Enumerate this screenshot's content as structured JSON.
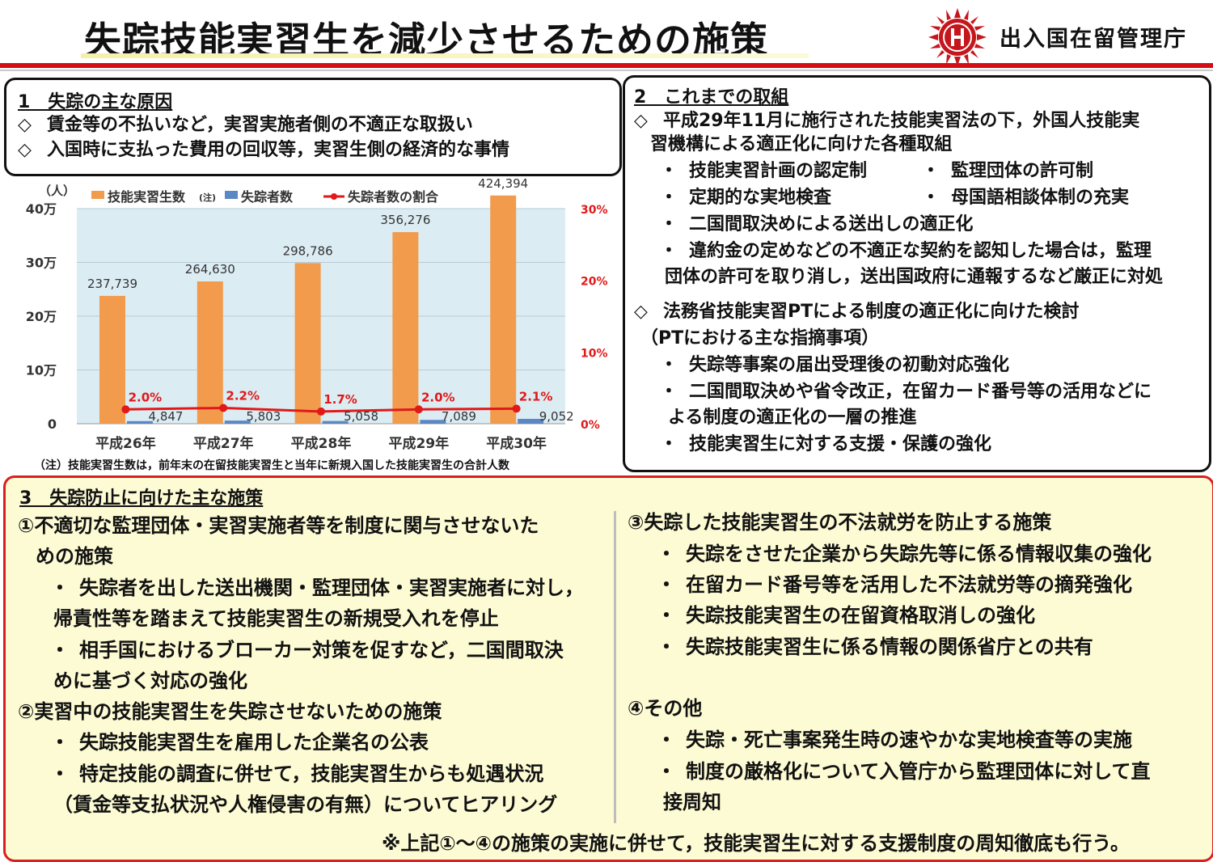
{
  "header": {
    "title": "失踪技能実習生を減少させるための施策",
    "agency": "出入国在留管理庁"
  },
  "section1": {
    "heading": "1　失踪の主な原因",
    "items": [
      "賃金等の不払いなど，実習実施者側の不適正な取扱い",
      "入国時に支払った費用の回収等，実習生側の経済的な事情"
    ],
    "bullet": "◇"
  },
  "chart_data": {
    "type": "bar",
    "categories": [
      "平成26年",
      "平成27年",
      "平成28年",
      "平成29年",
      "平成30年"
    ],
    "series": [
      {
        "name": "技能実習生数(注)",
        "type": "bar",
        "values": [
          237739,
          264630,
          298786,
          356276,
          424394
        ],
        "color": "#f29b4c"
      },
      {
        "name": "失踪者数",
        "type": "bar",
        "values": [
          4847,
          5803,
          5058,
          7089,
          9052
        ],
        "color": "#5b87c4"
      },
      {
        "name": "失踪者数の割合",
        "type": "line",
        "axis": "right",
        "values": [
          2.0,
          2.2,
          1.7,
          2.0,
          2.1
        ],
        "color": "#e01919"
      }
    ],
    "value_labels": {
      "trainees": [
        "237,739",
        "264,630",
        "298,786",
        "356,276",
        "424,394"
      ],
      "runaways": [
        "4,847",
        "5,803",
        "5,058",
        "7,089",
        "9,052"
      ],
      "ratio": [
        "2.0%",
        "2.2%",
        "1.7%",
        "2.0%",
        "2.1%"
      ]
    },
    "ylabel": "（人）",
    "y_ticks": [
      "0",
      "10万",
      "20万",
      "30万",
      "40万"
    ],
    "ylim": [
      0,
      400000
    ],
    "y2_ticks": [
      "0%",
      "10%",
      "20%",
      "30%"
    ],
    "y2lim": [
      0,
      30
    ],
    "legend": {
      "trainees": "技能実習生数",
      "note_mark": "(注)",
      "runaways": "失踪者数",
      "ratio": "失踪者数の割合",
      "position": "top"
    },
    "plot_background": "#dcecf3",
    "note": "（注）技能実習生数は，前年末の在留技能実習生と当年に新規入国した技能実習生の合計人数"
  },
  "section2": {
    "heading": "2　これまでの取組",
    "bullet": "◇",
    "dot": "・",
    "block1_line1": "平成29年11月に施行された技能実習法の下，外国人技能実",
    "block1_line2": "習機構による適正化に向けた各種取組",
    "pair1": [
      "技能実習計画の認定制",
      "監理団体の許可制"
    ],
    "pair2": [
      "定期的な実地検査",
      "母国語相談体制の充実"
    ],
    "item3": "二国間取決めによる送出しの適正化",
    "item4_line1": "違約金の定めなどの不適正な契約を認知した場合は，監理",
    "item4_line2": "団体の許可を取り消し，送出国政府に通報するなど厳正に対処",
    "block2_line1": "法務省技能実習PTによる制度の適正化に向けた検討",
    "block2_line2": "（PTにおける主な指摘事項）",
    "pt_item1": "失踪等事案の届出受理後の初動対応強化",
    "pt_item2_line1": "二国間取決めや省令改正，在留カード番号等の活用などに",
    "pt_item2_line2": "よる制度の適正化の一層の推進",
    "pt_item3": "技能実習生に対する支援・保護の強化"
  },
  "section3": {
    "heading": "3　失踪防止に向けた主な施策",
    "dot": "・",
    "m1_title_line1": "①不適切な監理団体・実習実施者等を制度に関与させないた",
    "m1_title_line2": "めの施策",
    "m1_item1_line1": "失踪者を出した送出機関・監理団体・実習実施者に対し，",
    "m1_item1_line2": "帰責性等を踏まえて技能実習生の新規受入れを停止",
    "m1_item2_line1": "相手国におけるブローカー対策を促すなど，二国間取決",
    "m1_item2_line2": "めに基づく対応の強化",
    "m2_title": "②実習中の技能実習生を失踪させないための施策",
    "m2_item1": "失踪技能実習生を雇用した企業名の公表",
    "m2_item2_line1": "特定技能の調査に併せて，技能実習生からも処遇状況",
    "m2_item2_line2": "（賃金等支払状況や人権侵害の有無）についてヒアリング",
    "m3_title": "③失踪した技能実習生の不法就労を防止する施策",
    "m3_items": [
      "失踪をさせた企業から失踪先等に係る情報収集の強化",
      "在留カード番号等を活用した不法就労等の摘発強化",
      "失踪技能実習生の在留資格取消しの強化",
      "失踪技能実習生に係る情報の関係省庁との共有"
    ],
    "m4_title": "④その他",
    "m4_item1": "失踪・死亡事案発生時の速やかな実地検査等の実施",
    "m4_item2_line1": "制度の厳格化について入管庁から監理団体に対して直",
    "m4_item2_line2": "接周知",
    "footer": "※上記①～④の施策の実施に併せて，技能実習生に対する支援制度の周知徹底も行う。"
  }
}
